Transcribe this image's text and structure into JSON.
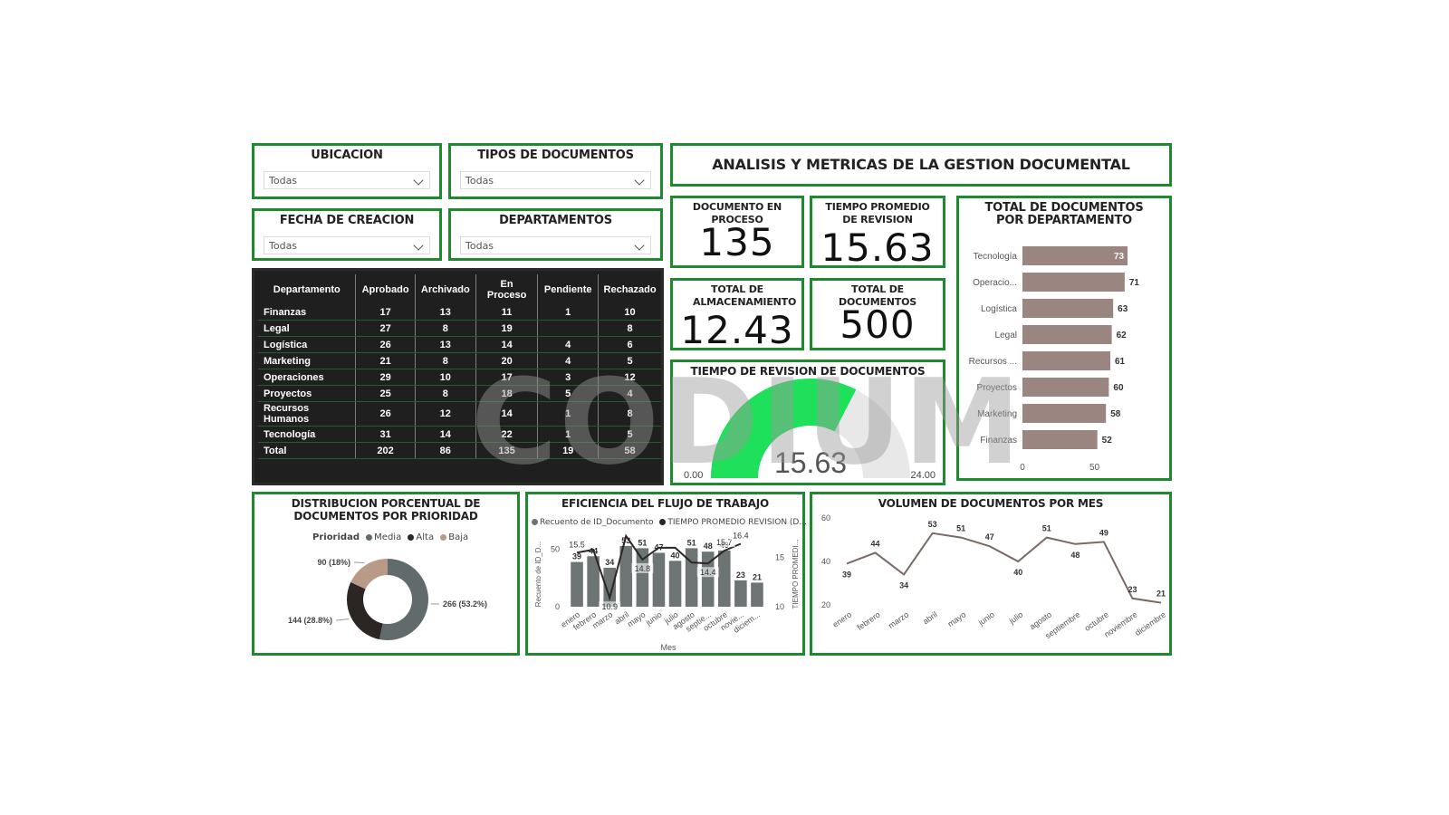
{
  "dashboard_title": "ANALISIS Y METRICAS DE LA GESTION DOCUMENTAL",
  "slicers": {
    "ubicacion": {
      "label": "UBICACION",
      "value": "Todas"
    },
    "tipos": {
      "label": "TIPOS DE DOCUMENTOS",
      "value": "Todas"
    },
    "fecha": {
      "label": "FECHA DE CREACION",
      "value": "Todas"
    },
    "departamentos": {
      "label": "DEPARTAMENTOS",
      "value": "Todas"
    }
  },
  "kpis": {
    "en_proceso": {
      "label": "DOCUMENTO EN PROCESO",
      "value": "135"
    },
    "tiempo_promedio": {
      "label": "TIEMPO PROMEDIO DE REVISION",
      "value": "15.63"
    },
    "almacenamiento": {
      "label": "TOTAL DE ALMACENAMIENTO",
      "value": "12.43"
    },
    "total_docs": {
      "label": "TOTAL DE DOCUMENTOS",
      "value": "500"
    }
  },
  "gauge": {
    "title": "TIEMPO DE REVISION DE DOCUMENTOS",
    "value": 15.63,
    "value_label": "15.63",
    "min": 0,
    "max": 24,
    "min_label": "0.00",
    "max_label": "24.00",
    "color": "#1fe05a"
  },
  "watermark": "CODIUM",
  "table": {
    "headers": [
      "Departamento",
      "Aprobado",
      "Archivado",
      "En Proceso",
      "Pendiente",
      "Rechazado"
    ],
    "rows": [
      [
        "Finanzas",
        "17",
        "13",
        "11",
        "1",
        "10"
      ],
      [
        "Legal",
        "27",
        "8",
        "19",
        "",
        "8"
      ],
      [
        "Logística",
        "26",
        "13",
        "14",
        "4",
        "6"
      ],
      [
        "Marketing",
        "21",
        "8",
        "20",
        "4",
        "5"
      ],
      [
        "Operaciones",
        "29",
        "10",
        "17",
        "3",
        "12"
      ],
      [
        "Proyectos",
        "25",
        "8",
        "18",
        "5",
        "4"
      ],
      [
        "Recursos Humanos",
        "26",
        "12",
        "14",
        "1",
        "8"
      ],
      [
        "Tecnología",
        "31",
        "14",
        "22",
        "1",
        "5"
      ],
      [
        "Total",
        "202",
        "86",
        "135",
        "19",
        "58"
      ]
    ]
  },
  "chart_data": [
    {
      "type": "bar",
      "title": "TOTAL DE DOCUMENTOS POR DEPARTAMENTO",
      "orientation": "horizontal",
      "categories": [
        "Tecnología",
        "Operacio...",
        "Logística",
        "Legal",
        "Recursos ...",
        "Proyectos",
        "Marketing",
        "Finanzas"
      ],
      "values": [
        73,
        71,
        63,
        62,
        61,
        60,
        58,
        52
      ],
      "xticks": [
        "0",
        "50"
      ],
      "xlim": [
        0,
        100
      ],
      "color": "#9b8580"
    },
    {
      "type": "pie",
      "title": "DISTRIBUCION PORCENTUAL DE DOCUMENTOS POR PRIORIDAD",
      "legend_title": "Prioridad",
      "legend_placement": "top",
      "slices": [
        {
          "name": "Media",
          "value": 266,
          "label": "266 (53.2%)",
          "color": "#626b6b"
        },
        {
          "name": "Alta",
          "value": 144,
          "label": "144 (28.8%)",
          "color": "#2b2524"
        },
        {
          "name": "Baja",
          "value": 90,
          "label": "90 (18%)",
          "color": "#b99a86"
        }
      ]
    },
    {
      "type": "bar",
      "title": "EFICIENCIA DEL FLUJO DE TRABAJO",
      "xlabel": "Mes",
      "ylabel": "Recuento de ID_D...",
      "y2label": "TIEMPO PROMEDI...",
      "categories": [
        "enero",
        "febrero",
        "marzo",
        "abril",
        "mayo",
        "junio",
        "julio",
        "agosto",
        "septie...",
        "octubre",
        "novie...",
        "diciem..."
      ],
      "series": [
        {
          "name": "Recuento de ID_Documento",
          "type": "bar",
          "values": [
            39,
            44,
            34,
            53,
            51,
            47,
            40,
            51,
            48,
            49,
            23,
            21
          ],
          "color": "#6c7474"
        },
        {
          "name": "TIEMPO PROMEDIO REVISION (D...",
          "type": "line",
          "values": [
            15.5,
            15.8,
            10.9,
            17.2,
            14.8,
            16.0,
            16.0,
            14.5,
            14.4,
            15.7,
            16.4,
            null
          ],
          "color": "#2b2524"
        }
      ],
      "ylim": [
        0,
        60
      ],
      "yticks": [
        0,
        50
      ],
      "y2lim": [
        10,
        17
      ],
      "y2ticks": [
        10,
        15
      ],
      "line_labels": {
        "0": "15.5",
        "2": "10.9",
        "4": "14.8",
        "8": "14.4",
        "9": "15.7",
        "10": "16.4"
      },
      "legend_placement": "top"
    },
    {
      "type": "line",
      "title": "VOLUMEN DE DOCUMENTOS POR MES",
      "categories": [
        "enero",
        "febrero",
        "marzo",
        "abril",
        "mayo",
        "junio",
        "julio",
        "agosto",
        "septiembre",
        "octubre",
        "noviembre",
        "diciembre"
      ],
      "values": [
        39,
        44,
        34,
        53,
        51,
        47,
        40,
        51,
        48,
        49,
        23,
        21
      ],
      "ylim": [
        20,
        60
      ],
      "yticks": [
        20,
        40,
        60
      ],
      "color": "#7a6a66"
    }
  ]
}
